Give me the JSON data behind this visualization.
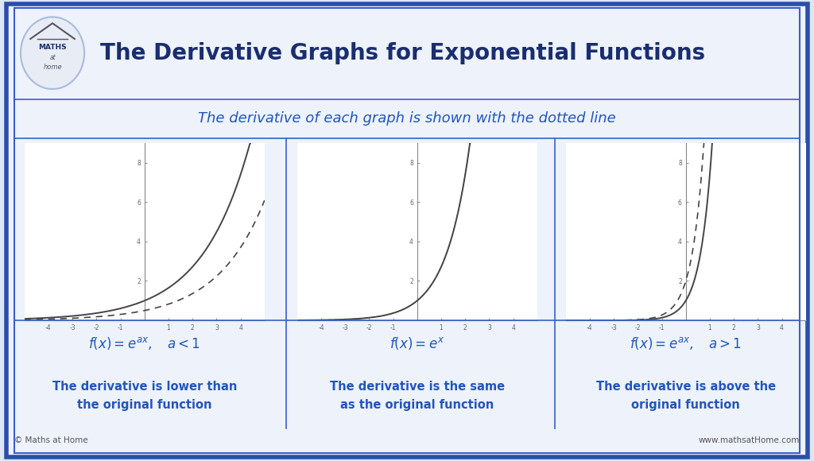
{
  "title": "The Derivative Graphs for Exponential Functions",
  "subtitle": "The derivative of each graph is shown with the dotted line",
  "bg_color": "#dce6f5",
  "inner_bg": "#edf2fb",
  "panel_bg": "#f8fafd",
  "border_color_outer": "#2b4fa8",
  "border_color_inner": "#3a5fc8",
  "title_color": "#1a2e6e",
  "subtitle_color": "#2255bb",
  "curve_color": "#444444",
  "tick_color": "#888888",
  "desc_color": "#2255bb",
  "formula_color": "#2255bb",
  "panels": [
    {
      "a": 0.5,
      "xlim": [
        -5,
        5
      ],
      "ylim": [
        0,
        9
      ],
      "yticks": [
        2,
        4,
        6,
        8
      ],
      "xticks": [
        -4,
        -3,
        -2,
        -1,
        1,
        2,
        3,
        4
      ],
      "formula": "$f(x) = e^{ax},\\quad a < 1$",
      "desc": "The derivative is lower than\nthe original function"
    },
    {
      "a": 1.0,
      "xlim": [
        -5,
        5
      ],
      "ylim": [
        0,
        9
      ],
      "yticks": [
        2,
        4,
        6,
        8
      ],
      "xticks": [
        -4,
        -3,
        -2,
        -1,
        1,
        2,
        3,
        4
      ],
      "formula": "$f(x) = e^{x}$",
      "desc": "The derivative is the same\nas the original function"
    },
    {
      "a": 2.0,
      "xlim": [
        -5,
        5
      ],
      "ylim": [
        0,
        9
      ],
      "yticks": [
        2,
        4,
        6,
        8
      ],
      "xticks": [
        -4,
        -3,
        -2,
        -1,
        1,
        2,
        3,
        4
      ],
      "formula": "$f(x) = e^{ax},\\quad a > 1$",
      "desc": "The derivative is above the\noriginal function"
    }
  ],
  "footer_left": "© Maths at Home",
  "footer_right": "www.mathsatHome.com"
}
